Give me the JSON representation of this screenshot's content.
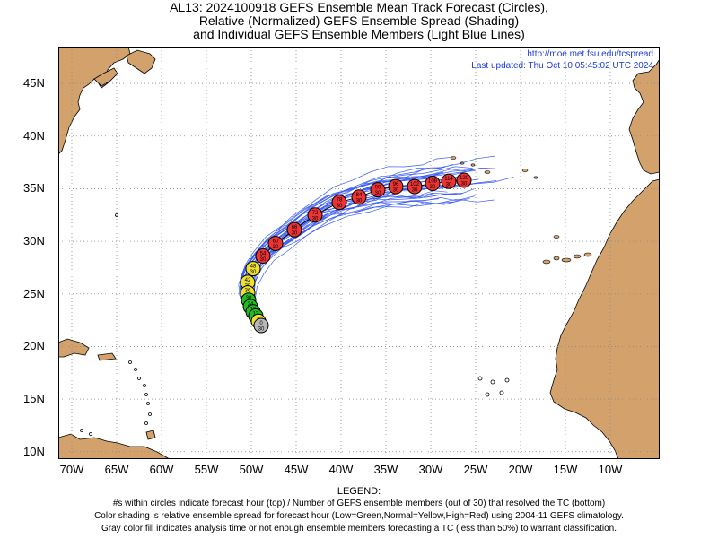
{
  "title": {
    "line1": "AL13: 2024100918 GEFS Ensemble Mean Track Forecast (Circles),",
    "line2": "Relative (Normalized) GEFS Ensemble Spread (Shading)",
    "line3": "and Individual GEFS Ensemble Members (Light Blue Lines)"
  },
  "credit": {
    "url": "http://moe.met.fsu.edu/tcspread",
    "updated": "Last updated: Thu Oct 10 05:45:02 UTC 2024"
  },
  "axes": {
    "y_ticks": [
      "45N",
      "40N",
      "35N",
      "30N",
      "25N",
      "20N",
      "15N",
      "10N"
    ],
    "y_values": [
      45,
      40,
      35,
      30,
      25,
      20,
      15,
      10
    ],
    "x_ticks": [
      "70W",
      "65W",
      "60W",
      "55W",
      "50W",
      "45W",
      "40W",
      "35W",
      "30W",
      "25W",
      "20W",
      "15W",
      "10W"
    ],
    "x_values": [
      -70,
      -65,
      -60,
      -55,
      -50,
      -45,
      -40,
      -35,
      -30,
      -25,
      -20,
      -15,
      -10
    ],
    "lon_range": [
      -71.5,
      -4.5
    ],
    "lat_range": [
      9.3,
      48.5
    ],
    "grid": true
  },
  "colors": {
    "land": "#d3a26c",
    "member_track": "#3a5cf0",
    "spread_low": "#22bb22",
    "spread_normal": "#ede030",
    "spread_high": "#ee3333",
    "analysis": "#b8b8b8"
  },
  "track": [
    {
      "hour": 0,
      "members": 30,
      "lon": -48.9,
      "lat": 22.0,
      "spread": "analysis"
    },
    {
      "hour": 6,
      "members": 30,
      "lon": -49.2,
      "lat": 22.4,
      "spread": "normal"
    },
    {
      "hour": 12,
      "members": 30,
      "lon": -49.5,
      "lat": 22.9,
      "spread": "low"
    },
    {
      "hour": 18,
      "members": 30,
      "lon": -49.8,
      "lat": 23.3,
      "spread": "low"
    },
    {
      "hour": 24,
      "members": 30,
      "lon": -50.1,
      "lat": 23.8,
      "spread": "low"
    },
    {
      "hour": 30,
      "members": 30,
      "lon": -50.3,
      "lat": 24.4,
      "spread": "low"
    },
    {
      "hour": 36,
      "members": 30,
      "lon": -50.4,
      "lat": 25.1,
      "spread": "normal"
    },
    {
      "hour": 42,
      "members": 30,
      "lon": -50.4,
      "lat": 26.1,
      "spread": "normal"
    },
    {
      "hour": 48,
      "members": 30,
      "lon": -49.8,
      "lat": 27.4,
      "spread": "normal"
    },
    {
      "hour": 54,
      "members": 30,
      "lon": -48.7,
      "lat": 28.6,
      "spread": "high"
    },
    {
      "hour": 60,
      "members": 30,
      "lon": -47.3,
      "lat": 29.8,
      "spread": "high"
    },
    {
      "hour": 66,
      "members": 30,
      "lon": -45.2,
      "lat": 31.1,
      "spread": "high"
    },
    {
      "hour": 72,
      "members": 30,
      "lon": -42.9,
      "lat": 32.5,
      "spread": "high"
    },
    {
      "hour": 78,
      "members": 30,
      "lon": -40.2,
      "lat": 33.7,
      "spread": "high"
    },
    {
      "hour": 84,
      "members": 30,
      "lon": -38.0,
      "lat": 34.2,
      "spread": "high"
    },
    {
      "hour": 90,
      "members": 30,
      "lon": -35.9,
      "lat": 34.9,
      "spread": "high"
    },
    {
      "hour": 96,
      "members": 30,
      "lon": -33.9,
      "lat": 35.2,
      "spread": "high"
    },
    {
      "hour": 102,
      "members": 30,
      "lon": -31.8,
      "lat": 35.2,
      "spread": "high"
    },
    {
      "hour": 108,
      "members": 30,
      "lon": -29.8,
      "lat": 35.5,
      "spread": "high"
    },
    {
      "hour": 114,
      "members": 30,
      "lon": -28.0,
      "lat": 35.7,
      "spread": "high"
    },
    {
      "hour": 120,
      "members": 30,
      "lon": -26.3,
      "lat": 35.8,
      "spread": "high"
    }
  ],
  "legend": {
    "heading": "LEGEND:",
    "line1": "#s within circles indicate forecast hour (top) / Number of GEFS ensemble members (out of 30) that resolved the TC (bottom)",
    "line2": "Color shading is relative ensemble spread for forecast hour (Low=Green,Normal=Yellow,High=Red) using 2004-11 GEFS climatology.",
    "line3": "Gray color fill indicates analysis time or not enough ensemble members forecasting a TC (less than 50%) to warrant classification."
  }
}
